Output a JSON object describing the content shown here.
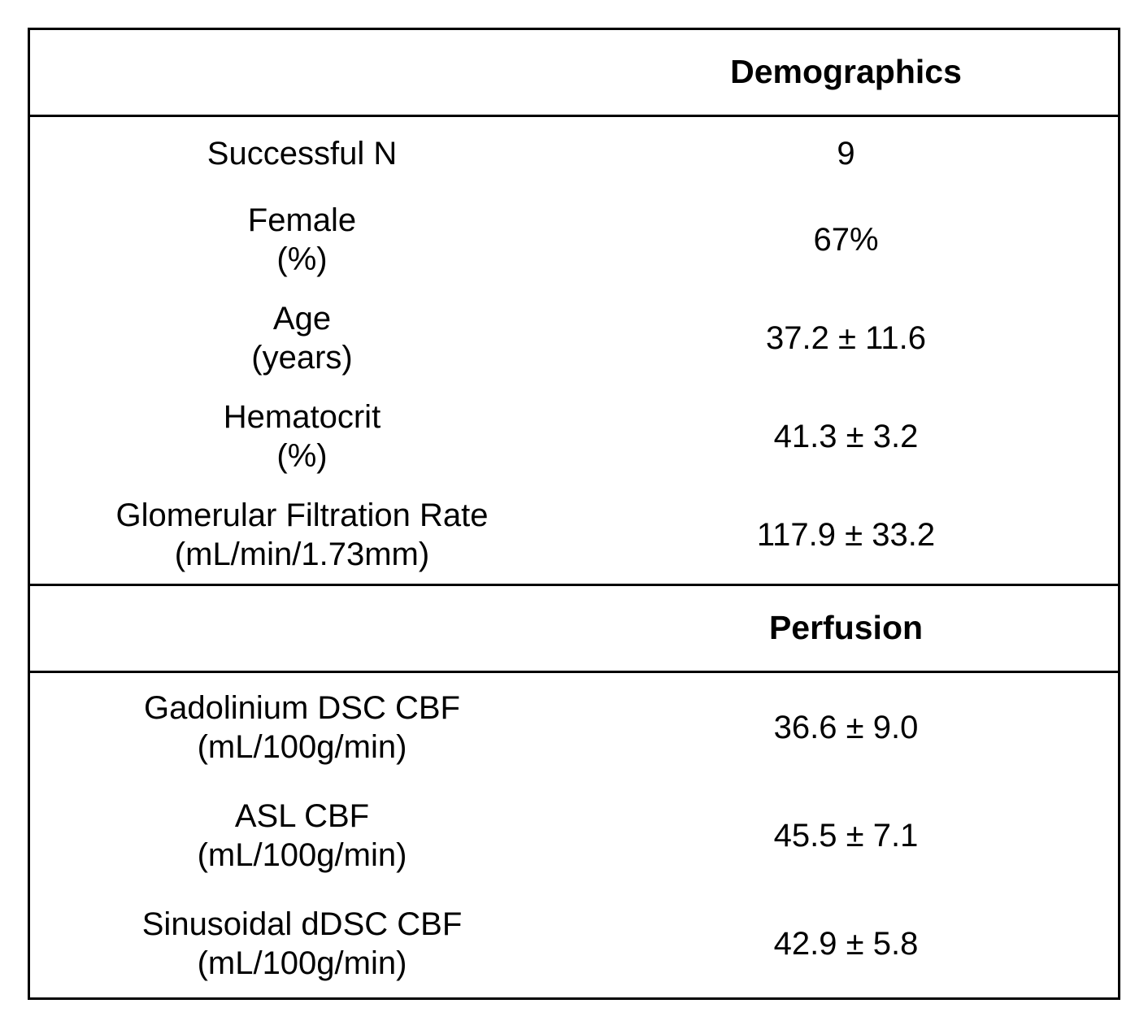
{
  "colors": {
    "background": "#ffffff",
    "border": "#000000",
    "text": "#000000"
  },
  "table": {
    "sections": [
      {
        "header": "Demographics",
        "rows": [
          {
            "label": "Successful N",
            "sublabel": "",
            "value": "9"
          },
          {
            "label": "Female",
            "sublabel": "(%)",
            "value": "67%"
          },
          {
            "label": "Age",
            "sublabel": "(years)",
            "value": "37.2 ± 11.6"
          },
          {
            "label": "Hematocrit",
            "sublabel": "(%)",
            "value": "41.3 ± 3.2"
          },
          {
            "label": "Glomerular Filtration Rate",
            "sublabel": "(mL/min/1.73mm)",
            "value": "117.9 ± 33.2"
          }
        ]
      },
      {
        "header": "Perfusion",
        "rows": [
          {
            "label": "Gadolinium DSC CBF",
            "sublabel": "(mL/100g/min)",
            "value": "36.6 ± 9.0"
          },
          {
            "label": "ASL CBF",
            "sublabel": "(mL/100g/min)",
            "value": "45.5 ± 7.1"
          },
          {
            "label": "Sinusoidal dDSC CBF",
            "sublabel": "(mL/100g/min)",
            "value": "42.9 ± 5.8"
          }
        ]
      }
    ]
  }
}
